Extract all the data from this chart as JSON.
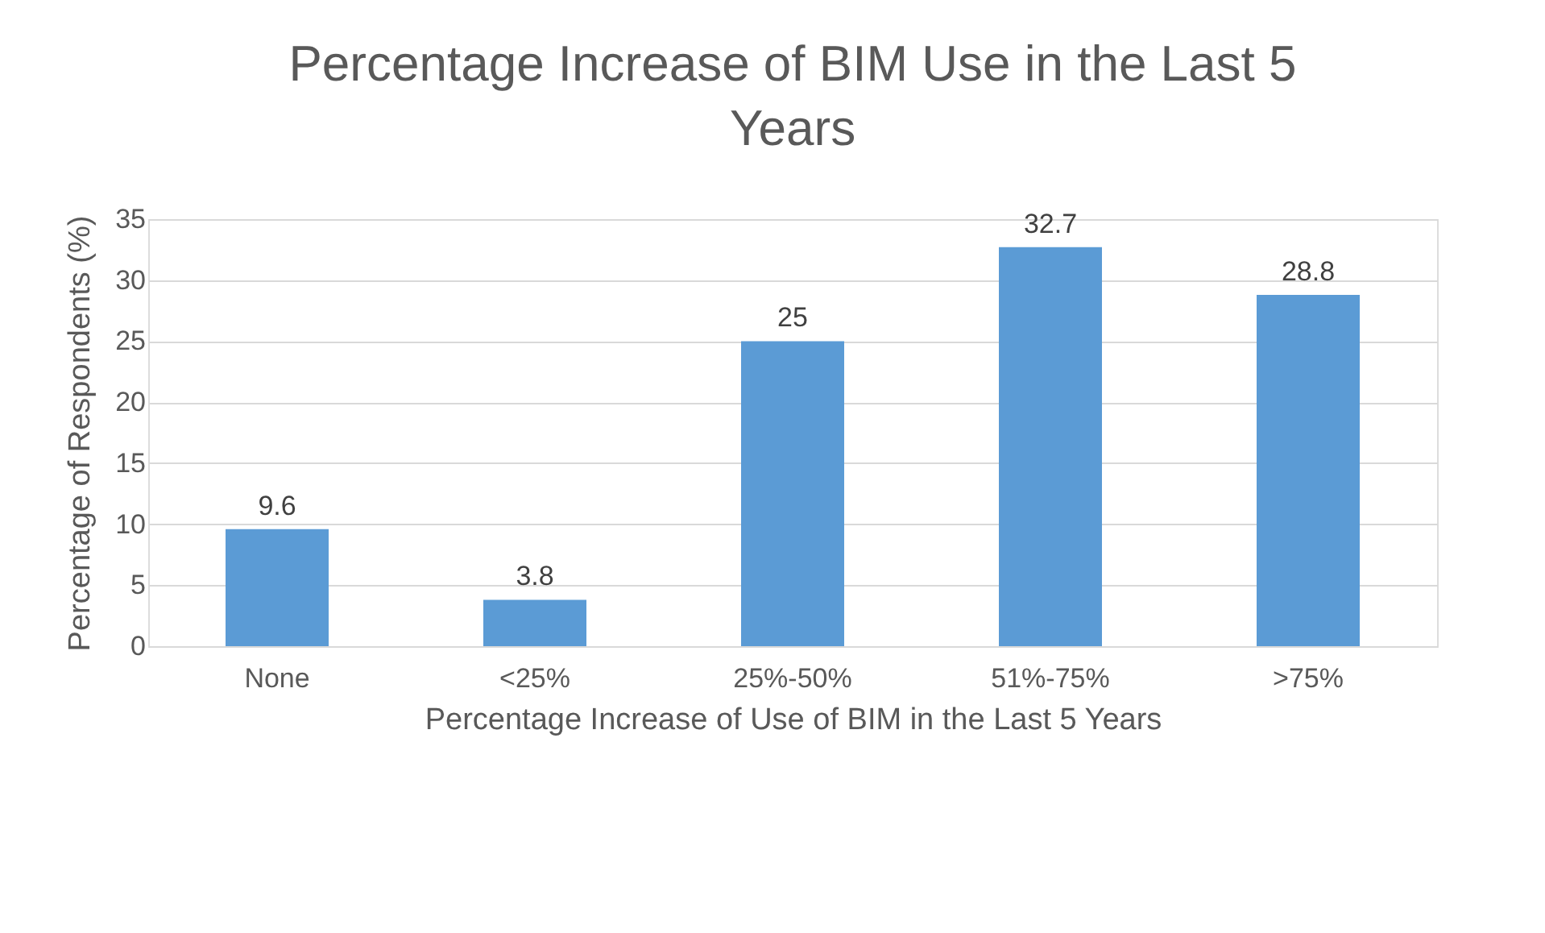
{
  "chart_data": {
    "type": "bar",
    "title": "Percentage Increase of BIM Use in the Last 5 Years",
    "xlabel": "Percentage Increase of Use of BIM in the Last 5 Years",
    "ylabel": "Percentage of Respondents (%)",
    "categories": [
      "None",
      "<25%",
      "25%-50%",
      "51%-75%",
      ">75%"
    ],
    "values": [
      9.6,
      3.8,
      25,
      32.7,
      28.8
    ],
    "color": "#5b9bd5",
    "ylim": [
      0,
      35
    ],
    "yticks": [
      0,
      5,
      10,
      15,
      20,
      25,
      30,
      35
    ],
    "grid": "y",
    "data_labels": true
  }
}
